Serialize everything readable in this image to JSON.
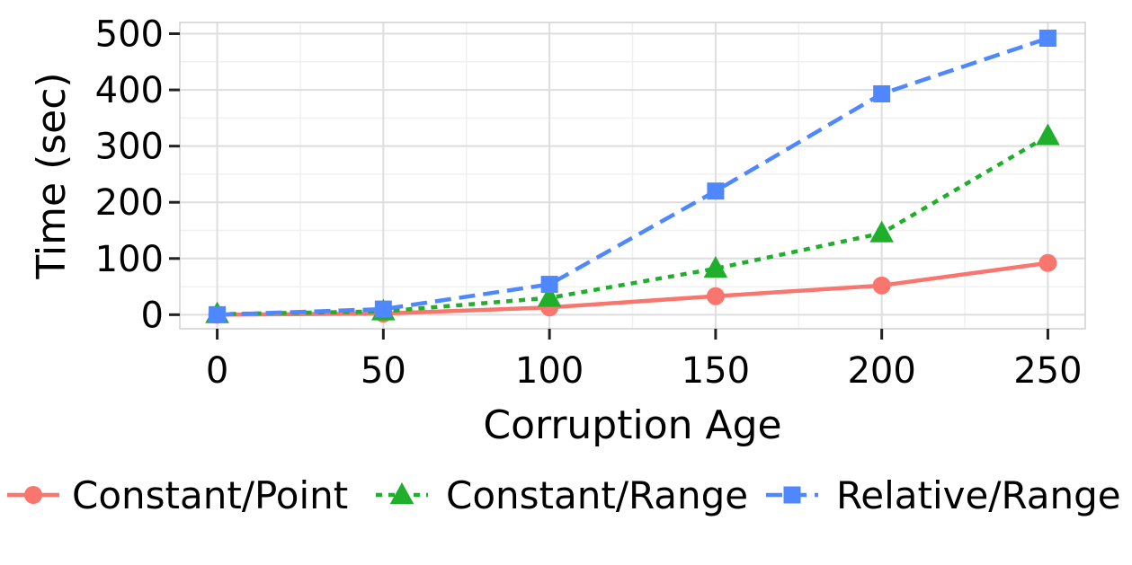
{
  "chart_data": {
    "type": "line",
    "title": "",
    "xlabel": "Corruption Age",
    "ylabel": "Time (sec)",
    "xlim": [
      -11.25,
      261.25
    ],
    "ylim": [
      -25,
      520
    ],
    "xticks": [
      0,
      50,
      100,
      150,
      200,
      250
    ],
    "yticks": [
      0,
      100,
      200,
      300,
      400,
      500
    ],
    "grid": true,
    "legend_position": "bottom",
    "series": [
      {
        "name": "Constant/Point",
        "color": "#F8766D",
        "line_style": "solid",
        "marker": "circle",
        "x": [
          0,
          50,
          100,
          150,
          200,
          250
        ],
        "y": [
          0,
          2,
          13,
          33,
          52,
          92
        ]
      },
      {
        "name": "Constant/Range",
        "color": "#1FAF2B",
        "line_style": "dotted",
        "marker": "triangle",
        "x": [
          0,
          50,
          100,
          150,
          200,
          250
        ],
        "y": [
          1,
          6,
          30,
          82,
          145,
          318
        ]
      },
      {
        "name": "Relative/Range",
        "color": "#4F87FF",
        "line_style": "dashed",
        "marker": "square",
        "x": [
          0,
          50,
          100,
          150,
          200,
          250
        ],
        "y": [
          0,
          10,
          54,
          220,
          393,
          492
        ]
      }
    ]
  }
}
